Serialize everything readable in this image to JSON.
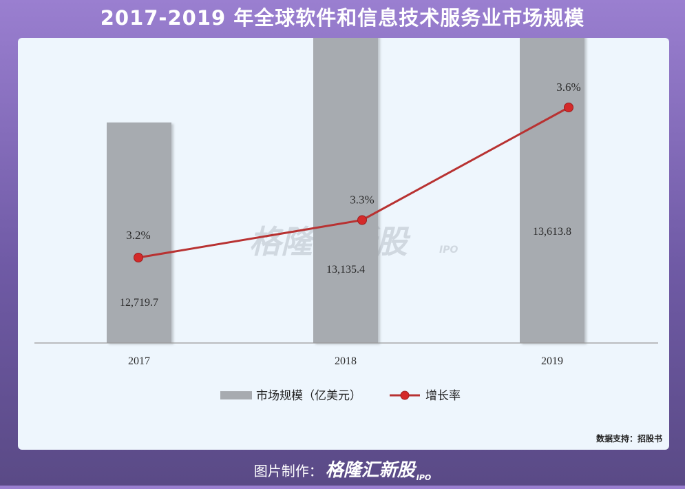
{
  "title": "2017-2019 年全球软件和信息技术服务业市场规模",
  "source": "数据支持：招股书",
  "footer": {
    "label": "图片制作：",
    "brand": "格隆汇新股",
    "brand_sub": "IPO"
  },
  "watermark": {
    "text": "格隆汇新股",
    "sub": "IPO"
  },
  "colors": {
    "bar": "#a7abb0",
    "line": "#b83232",
    "marker": "#d42a2a",
    "axis": "#9a9a9a"
  },
  "chart_data": {
    "type": "bar",
    "categories": [
      "2017",
      "2018",
      "2019"
    ],
    "series": [
      {
        "name": "市场规模（亿美元）",
        "type": "bar",
        "values": [
          12719.7,
          13135.4,
          13613.8
        ],
        "labels": [
          "12,719.7",
          "13,135.4",
          "13,613.8"
        ]
      },
      {
        "name": "增长率",
        "type": "line",
        "values": [
          3.2,
          3.3,
          3.6
        ],
        "labels": [
          "3.2%",
          "3.3%",
          "3.6%"
        ]
      }
    ],
    "legend_position": "bottom-center",
    "grid": false
  }
}
